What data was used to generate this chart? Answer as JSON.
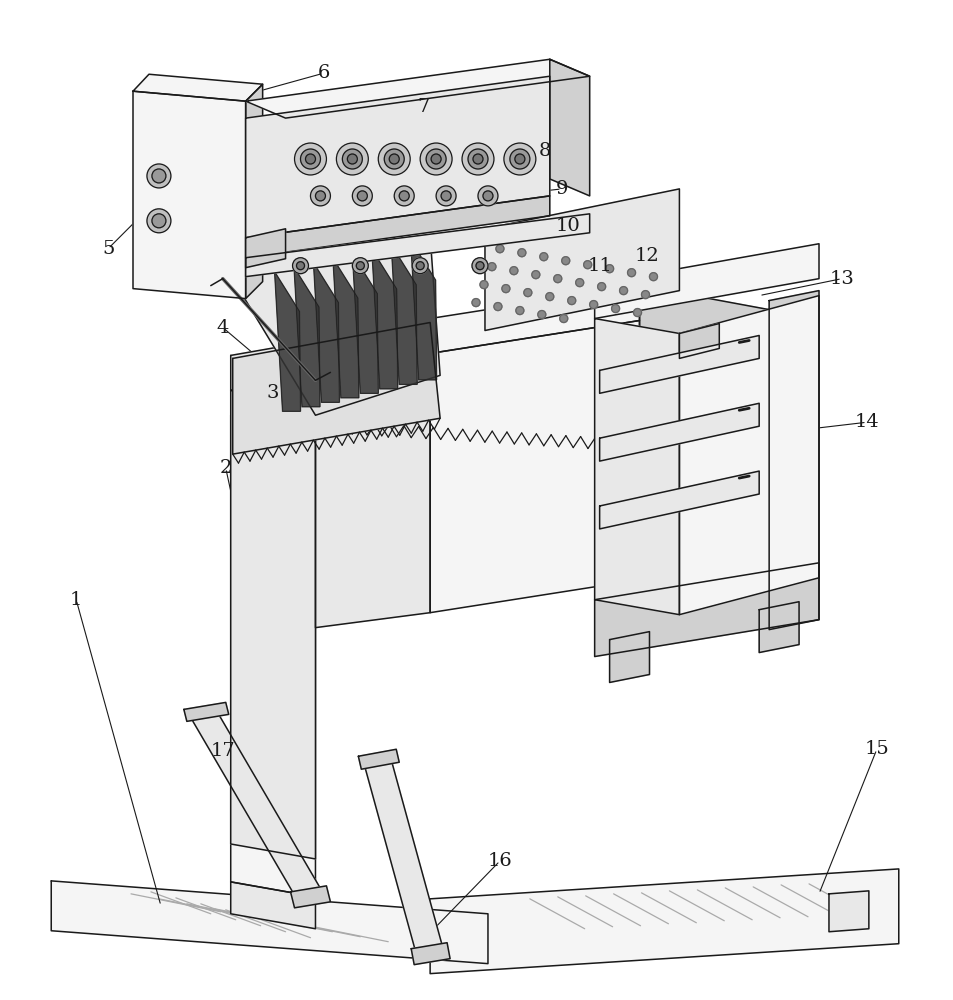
{
  "bg_color": "#ffffff",
  "line_color": "#1a1a1a",
  "fill_light": "#f5f5f5",
  "fill_mid": "#e8e8e8",
  "fill_dark": "#d0d0d0",
  "fill_darkest": "#b0b0b0",
  "fill_black": "#444444",
  "line_width": 1.1,
  "label_fontsize": 14,
  "labels": [
    [
      "1",
      75,
      600
    ],
    [
      "2",
      225,
      468
    ],
    [
      "3",
      272,
      393
    ],
    [
      "4",
      222,
      327
    ],
    [
      "5",
      107,
      248
    ],
    [
      "6",
      323,
      72
    ],
    [
      "7",
      423,
      106
    ],
    [
      "8",
      545,
      150
    ],
    [
      "9",
      562,
      188
    ],
    [
      "10",
      568,
      225
    ],
    [
      "11",
      600,
      265
    ],
    [
      "12",
      647,
      255
    ],
    [
      "13",
      843,
      278
    ],
    [
      "14",
      868,
      422
    ],
    [
      "15",
      878,
      750
    ],
    [
      "16",
      500,
      862
    ],
    [
      "17",
      222,
      752
    ]
  ]
}
